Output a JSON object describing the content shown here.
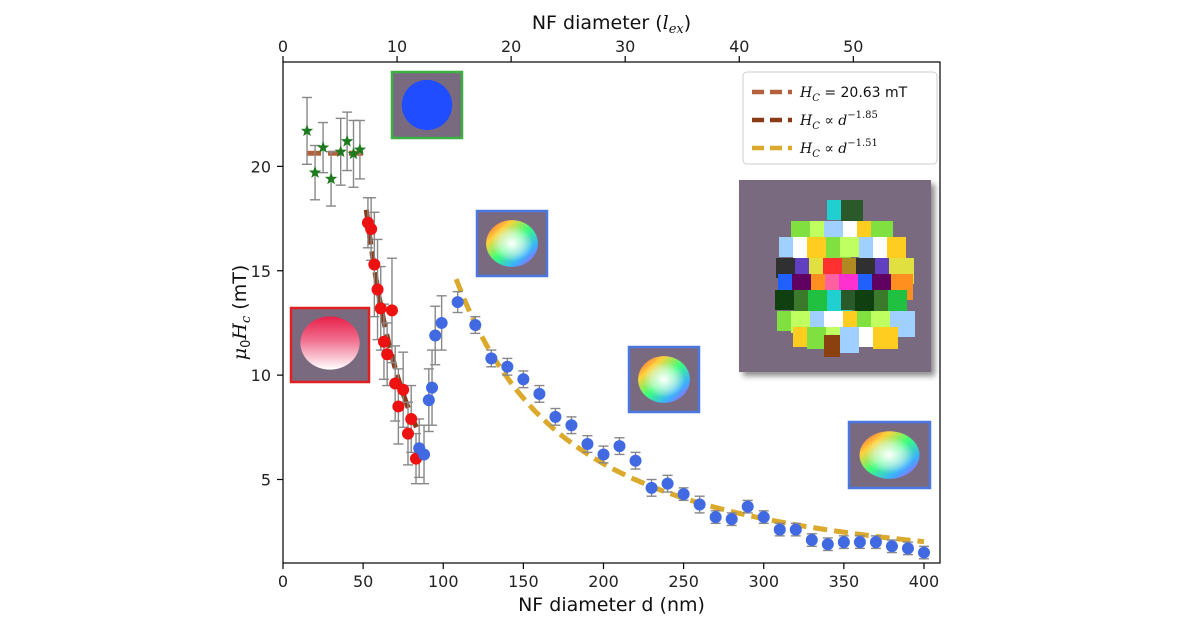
{
  "chart_data": {
    "type": "scatter",
    "xlabel": "NF diameter d (nm)",
    "x2label_prefix": "NF diameter (",
    "x2label_sym": "l",
    "x2label_sub": "ex",
    "x2label_suffix": ")",
    "ylabel_mu": "μ",
    "ylabel_sub0": "0",
    "ylabel_H": "H",
    "ylabel_subc": "c",
    "ylabel_unit": " (mT)",
    "xlim": [
      0,
      410
    ],
    "ylim": [
      1,
      25
    ],
    "x2lim": [
      0,
      57.6
    ],
    "xticks": [
      0,
      50,
      100,
      150,
      200,
      250,
      300,
      350,
      400
    ],
    "yticks": [
      5,
      10,
      15,
      20
    ],
    "x2ticks": [
      0,
      10,
      20,
      30,
      40,
      50
    ],
    "legend_position": "top-right",
    "legend": [
      {
        "label_main": "H",
        "label_sub": "C",
        "label_rest": " = 20.63 mT",
        "color": "#b5603a"
      },
      {
        "label_main": "H",
        "label_sub": "C",
        "label_rest": " ∝ d",
        "label_sup": "−1.85",
        "color": "#8b3a16"
      },
      {
        "label_main": "H",
        "label_sub": "C",
        "label_rest": " ∝ d",
        "label_sup": "−1.51",
        "color": "#dba92b"
      }
    ],
    "series": [
      {
        "name": "stars",
        "marker": "star",
        "color": "#1e7a1e",
        "points": [
          {
            "x": 15,
            "y": 21.7,
            "err": 1.6
          },
          {
            "x": 20,
            "y": 19.7,
            "err": 1.3
          },
          {
            "x": 25,
            "y": 20.9,
            "err": 1.2
          },
          {
            "x": 30,
            "y": 19.4,
            "err": 1.3
          },
          {
            "x": 36,
            "y": 20.7,
            "err": 1.6
          },
          {
            "x": 40,
            "y": 21.2,
            "err": 1.4
          },
          {
            "x": 44,
            "y": 20.6,
            "err": 1.6
          },
          {
            "x": 48,
            "y": 20.8,
            "err": 1.4
          }
        ]
      },
      {
        "name": "red",
        "marker": "circle",
        "color": "#ee1111",
        "points": [
          {
            "x": 53,
            "y": 17.3,
            "err": 1.2
          },
          {
            "x": 55,
            "y": 17.0,
            "err": 1.5
          },
          {
            "x": 57,
            "y": 15.3,
            "err": 2.5
          },
          {
            "x": 59,
            "y": 14.1,
            "err": 2.4
          },
          {
            "x": 61,
            "y": 13.2,
            "err": 2.0
          },
          {
            "x": 63,
            "y": 11.6,
            "err": 1.8
          },
          {
            "x": 65,
            "y": 11.0,
            "err": 1.5
          },
          {
            "x": 68,
            "y": 13.1,
            "err": 2.5
          },
          {
            "x": 70,
            "y": 9.6,
            "err": 1.8
          },
          {
            "x": 72,
            "y": 8.5,
            "err": 1.8
          },
          {
            "x": 75,
            "y": 9.3,
            "err": 1.8
          },
          {
            "x": 78,
            "y": 7.2,
            "err": 1.5
          },
          {
            "x": 80,
            "y": 7.9,
            "err": 1.6
          },
          {
            "x": 83,
            "y": 6.0,
            "err": 1.2
          }
        ]
      },
      {
        "name": "blue",
        "marker": "circle",
        "color": "#4169e1",
        "points": [
          {
            "x": 85,
            "y": 6.5,
            "err": 1.4
          },
          {
            "x": 88,
            "y": 6.2,
            "err": 1.4
          },
          {
            "x": 91,
            "y": 8.8,
            "err": 1.5
          },
          {
            "x": 93,
            "y": 9.4,
            "err": 1.8
          },
          {
            "x": 95,
            "y": 11.9,
            "err": 1.4
          },
          {
            "x": 99,
            "y": 12.5,
            "err": 1.3
          },
          {
            "x": 109,
            "y": 13.5,
            "err": 0.5
          },
          {
            "x": 120,
            "y": 12.4,
            "err": 0.4
          },
          {
            "x": 130,
            "y": 10.8,
            "err": 0.4
          },
          {
            "x": 140,
            "y": 10.4,
            "err": 0.4
          },
          {
            "x": 150,
            "y": 9.8,
            "err": 0.4
          },
          {
            "x": 160,
            "y": 9.1,
            "err": 0.4
          },
          {
            "x": 170,
            "y": 8.0,
            "err": 0.4
          },
          {
            "x": 180,
            "y": 7.6,
            "err": 0.4
          },
          {
            "x": 190,
            "y": 6.7,
            "err": 0.4
          },
          {
            "x": 200,
            "y": 6.2,
            "err": 0.4
          },
          {
            "x": 210,
            "y": 6.6,
            "err": 0.4
          },
          {
            "x": 220,
            "y": 5.9,
            "err": 0.4
          },
          {
            "x": 230,
            "y": 4.6,
            "err": 0.4
          },
          {
            "x": 240,
            "y": 4.8,
            "err": 0.4
          },
          {
            "x": 250,
            "y": 4.3,
            "err": 0.3
          },
          {
            "x": 260,
            "y": 3.8,
            "err": 0.4
          },
          {
            "x": 270,
            "y": 3.2,
            "err": 0.3
          },
          {
            "x": 280,
            "y": 3.1,
            "err": 0.3
          },
          {
            "x": 290,
            "y": 3.7,
            "err": 0.3
          },
          {
            "x": 300,
            "y": 3.2,
            "err": 0.3
          },
          {
            "x": 310,
            "y": 2.6,
            "err": 0.3
          },
          {
            "x": 320,
            "y": 2.6,
            "err": 0.3
          },
          {
            "x": 330,
            "y": 2.1,
            "err": 0.3
          },
          {
            "x": 340,
            "y": 1.9,
            "err": 0.3
          },
          {
            "x": 350,
            "y": 2.0,
            "err": 0.3
          },
          {
            "x": 360,
            "y": 2.0,
            "err": 0.3
          },
          {
            "x": 370,
            "y": 2.0,
            "err": 0.3
          },
          {
            "x": 380,
            "y": 1.8,
            "err": 0.3
          },
          {
            "x": 390,
            "y": 1.7,
            "err": 0.3
          },
          {
            "x": 400,
            "y": 1.5,
            "err": 0.3
          }
        ]
      }
    ],
    "fits": [
      {
        "name": "constant",
        "color": "#b5603a",
        "x_range": [
          15,
          50
        ],
        "form": "constant",
        "c": 20.63
      },
      {
        "name": "power_185",
        "color": "#8b3a16",
        "x_range": [
          52,
          84
        ],
        "form": "power",
        "a": 17.3,
        "x0": 53,
        "exp": -1.85
      },
      {
        "name": "power_151",
        "color": "#dba92b",
        "x_range": [
          108,
          400
        ],
        "form": "power",
        "a": 14.6,
        "x0": 108,
        "exp": -1.51
      }
    ],
    "insets": [
      {
        "name": "blue-vortex-inset",
        "border": "#3cb043",
        "style": "blue"
      },
      {
        "name": "red-white-inset",
        "border": "#e02020",
        "style": "redwhite"
      },
      {
        "name": "rainbow-inset-1",
        "border": "#4a78e0",
        "style": "rainbow"
      },
      {
        "name": "rainbow-inset-2",
        "border": "#4a78e0",
        "style": "rainbow"
      },
      {
        "name": "rainbow-inset-3",
        "border": "#4a78e0",
        "style": "rainbow"
      },
      {
        "name": "multidomain-inset",
        "border": "none",
        "style": "multidomain"
      }
    ]
  }
}
